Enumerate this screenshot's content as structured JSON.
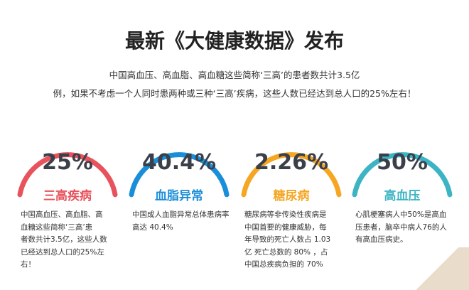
{
  "header": {
    "title": "最新《大健康数据》发布",
    "intro": [
      "中国高血压、高血脂、高血糖这些简称‘三高’的患者数共计3.5亿",
      "例，如果不考虑一个人同时患两种或三种‘三高’疾病，这些人数已经达到总人口的25%左右！"
    ]
  },
  "cards": [
    {
      "percent": "25%",
      "title": "三高疾病",
      "color": "#e8525c",
      "lines": [
        "中国高血压、高血脂、高",
        "血糖这些简称‘三高’患",
        "者数共计3.5亿，这些人数",
        "已经达到总人口的25%左",
        "右！"
      ]
    },
    {
      "percent": "40.4%",
      "title": "血脂异常",
      "color": "#1a8ed8",
      "lines": [
        "中国成人血脂异常总体患病率",
        "高达 40.4%"
      ]
    },
    {
      "percent": "2.26%",
      "title": "糖尿病",
      "color": "#f5a623",
      "lines": [
        "糖尿病等非传染性疾病是",
        "中国首要的健康威胁，每",
        "年导致的死亡人数占 1.03",
        "亿 死亡总数的 80% ，占",
        "中国总疾病负担的 70%"
      ]
    },
    {
      "percent": "50%",
      "title": "高血压",
      "color": "#3cb4c4",
      "lines": [
        "心肌梗塞病人中50%是高血",
        "压患者，脑卒中病人76的人",
        "有高血压病史。"
      ]
    }
  ]
}
